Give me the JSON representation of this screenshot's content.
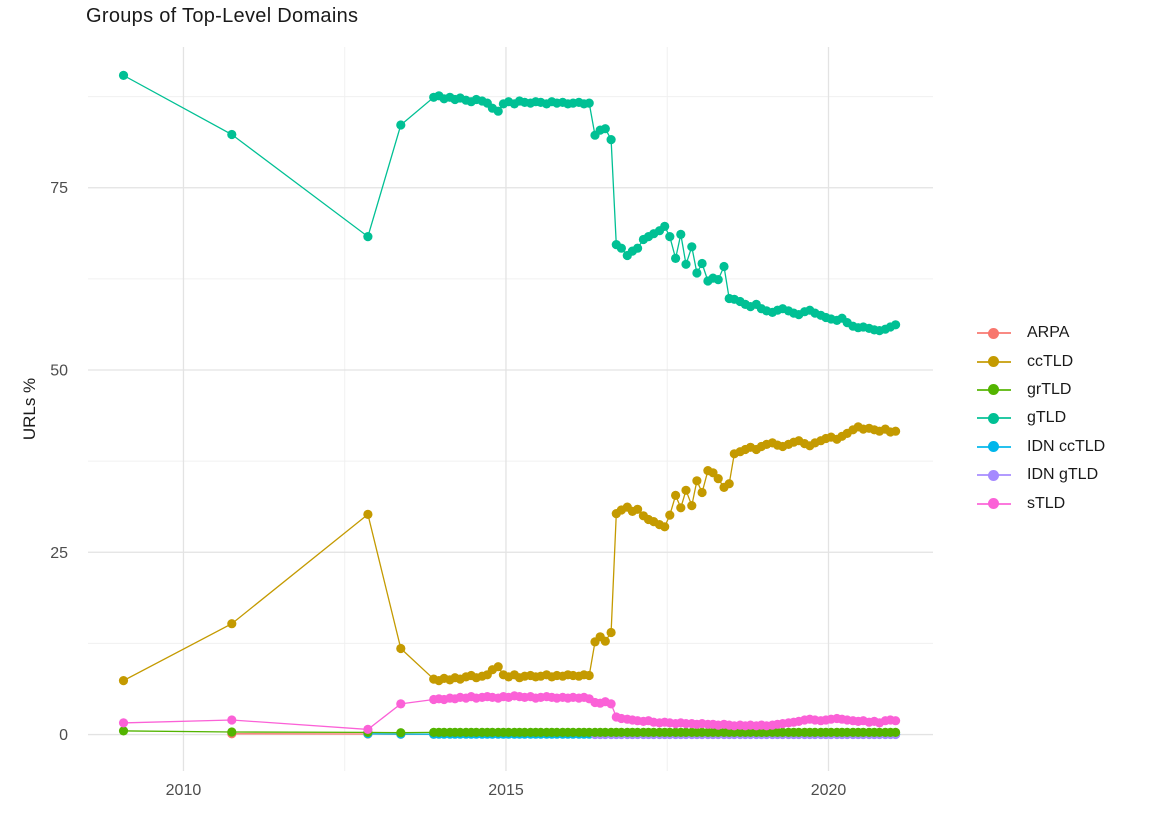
{
  "page": {
    "background": "#ffffff"
  },
  "chart_data": {
    "type": "line",
    "title": "Groups of Top-Level Domains",
    "xlabel": "",
    "ylabel": "URLs %",
    "x_ticks": [
      2010,
      2015,
      2020
    ],
    "y_ticks": [
      0,
      25,
      50,
      75
    ],
    "x_minor_gridlines": [
      2012.5,
      2017.5
    ],
    "y_minor_gridlines": [
      12.5,
      37.5,
      62.5,
      87.5
    ],
    "xlim": [
      2008.52,
      2021.62
    ],
    "ylim": [
      -5,
      94.3
    ],
    "grid": "major+minor",
    "legend_position": "right",
    "colors": {
      "grid_major": "#e3e3e3",
      "grid_minor": "#f0f0f0",
      "axis_text": "#4d4d4d",
      "text": "#1a1a1a"
    },
    "series": [
      {
        "name": "ARPA",
        "color": "#F8766D",
        "x": [
          2010.75,
          2012.86,
          2013.37,
          2013.88
        ],
        "y": [
          0.1,
          0.07,
          0.05,
          0.05
        ]
      },
      {
        "name": "ccTLD",
        "color": "#C49A00",
        "x": [
          2009.07,
          2010.75,
          2012.86,
          2013.37,
          2013.88,
          2013.96,
          2014.04,
          2014.13,
          2014.21,
          2014.29,
          2014.38,
          2014.46,
          2014.54,
          2014.63,
          2014.71,
          2014.79,
          2014.88,
          2014.96,
          2015.04,
          2015.13,
          2015.21,
          2015.29,
          2015.38,
          2015.46,
          2015.54,
          2015.63,
          2015.71,
          2015.79,
          2015.88,
          2015.96,
          2016.04,
          2016.13,
          2016.21,
          2016.29,
          2016.38,
          2016.46,
          2016.54,
          2016.63,
          2016.71,
          2016.79,
          2016.88,
          2016.96,
          2017.04,
          2017.13,
          2017.21,
          2017.29,
          2017.38,
          2017.46,
          2017.54,
          2017.63,
          2017.71,
          2017.79,
          2017.88,
          2017.96,
          2018.04,
          2018.13,
          2018.21,
          2018.29,
          2018.38,
          2018.46,
          2018.54,
          2018.63,
          2018.71,
          2018.79,
          2018.88,
          2018.96,
          2019.04,
          2019.13,
          2019.21,
          2019.29,
          2019.38,
          2019.46,
          2019.54,
          2019.63,
          2019.71,
          2019.79,
          2019.88,
          2019.96,
          2020.04,
          2020.13,
          2020.21,
          2020.29,
          2020.38,
          2020.46,
          2020.54,
          2020.63,
          2020.71,
          2020.79,
          2020.88,
          2020.96,
          2021.04
        ],
        "y": [
          7.4,
          15.2,
          30.2,
          11.8,
          7.6,
          7.4,
          7.7,
          7.5,
          7.8,
          7.6,
          7.9,
          8.1,
          7.8,
          8.0,
          8.2,
          8.9,
          9.3,
          8.2,
          7.9,
          8.2,
          7.8,
          8.0,
          8.1,
          7.9,
          8.0,
          8.2,
          7.9,
          8.1,
          8.0,
          8.2,
          8.1,
          8.0,
          8.2,
          8.1,
          12.7,
          13.4,
          12.8,
          14.0,
          30.3,
          30.8,
          31.2,
          30.6,
          30.9,
          30.0,
          29.5,
          29.2,
          28.8,
          28.5,
          30.1,
          32.8,
          31.1,
          33.5,
          31.4,
          34.8,
          33.2,
          36.2,
          35.9,
          35.1,
          33.9,
          34.4,
          38.5,
          38.8,
          39.1,
          39.4,
          39.1,
          39.5,
          39.8,
          40.0,
          39.7,
          39.5,
          39.8,
          40.1,
          40.3,
          39.9,
          39.6,
          40.0,
          40.3,
          40.6,
          40.8,
          40.5,
          40.9,
          41.3,
          41.8,
          42.2,
          41.9,
          42.0,
          41.8,
          41.6,
          41.9,
          41.5,
          41.6
        ]
      },
      {
        "name": "grTLD",
        "color": "#53B400",
        "x": [
          2009.07,
          2010.75,
          2012.86,
          2013.37,
          2013.88,
          2013.96,
          2014.04,
          2014.13,
          2014.21,
          2014.29,
          2014.38,
          2014.46,
          2014.54,
          2014.63,
          2014.71,
          2014.79,
          2014.88,
          2014.96,
          2015.04,
          2015.13,
          2015.21,
          2015.29,
          2015.38,
          2015.46,
          2015.54,
          2015.63,
          2015.71,
          2015.79,
          2015.88,
          2015.96,
          2016.04,
          2016.13,
          2016.21,
          2016.29,
          2016.38,
          2016.46,
          2016.54,
          2016.63,
          2016.71,
          2016.79,
          2016.88,
          2016.96,
          2017.04,
          2017.13,
          2017.21,
          2017.29,
          2017.38,
          2017.46,
          2017.54,
          2017.63,
          2017.71,
          2017.79,
          2017.88,
          2017.96,
          2018.04,
          2018.13,
          2018.21,
          2018.29,
          2018.38,
          2018.46,
          2018.54,
          2018.63,
          2018.71,
          2018.79,
          2018.88,
          2018.96,
          2019.04,
          2019.13,
          2019.21,
          2019.29,
          2019.38,
          2019.46,
          2019.54,
          2019.63,
          2019.71,
          2019.79,
          2019.88,
          2019.96,
          2020.04,
          2020.13,
          2020.21,
          2020.29,
          2020.38,
          2020.46,
          2020.54,
          2020.63,
          2020.71,
          2020.79,
          2020.88,
          2020.96,
          2021.04
        ],
        "y": [
          0.5,
          0.35,
          0.3,
          0.25,
          0.3,
          0.3,
          0.3,
          0.3,
          0.3,
          0.3,
          0.3,
          0.3,
          0.3,
          0.3,
          0.3,
          0.3,
          0.3,
          0.3,
          0.3,
          0.3,
          0.3,
          0.3,
          0.3,
          0.3,
          0.3,
          0.3,
          0.3,
          0.3,
          0.3,
          0.3,
          0.3,
          0.3,
          0.3,
          0.3,
          0.3,
          0.3,
          0.3,
          0.3,
          0.3,
          0.3,
          0.3,
          0.3,
          0.3,
          0.3,
          0.3,
          0.3,
          0.3,
          0.3,
          0.3,
          0.3,
          0.3,
          0.3,
          0.3,
          0.3,
          0.3,
          0.3,
          0.3,
          0.3,
          0.3,
          0.3,
          0.3,
          0.3,
          0.3,
          0.3,
          0.3,
          0.3,
          0.3,
          0.3,
          0.3,
          0.3,
          0.3,
          0.3,
          0.3,
          0.3,
          0.3,
          0.3,
          0.3,
          0.3,
          0.3,
          0.3,
          0.3,
          0.3,
          0.3,
          0.3,
          0.3,
          0.3,
          0.3,
          0.3,
          0.3,
          0.3,
          0.3
        ]
      },
      {
        "name": "gTLD",
        "color": "#00C094",
        "x": [
          2009.07,
          2010.75,
          2012.86,
          2013.37,
          2013.88,
          2013.96,
          2014.04,
          2014.13,
          2014.21,
          2014.29,
          2014.38,
          2014.46,
          2014.54,
          2014.63,
          2014.71,
          2014.79,
          2014.88,
          2014.96,
          2015.04,
          2015.13,
          2015.21,
          2015.29,
          2015.38,
          2015.46,
          2015.54,
          2015.63,
          2015.71,
          2015.79,
          2015.88,
          2015.96,
          2016.04,
          2016.13,
          2016.21,
          2016.29,
          2016.38,
          2016.46,
          2016.54,
          2016.63,
          2016.71,
          2016.79,
          2016.88,
          2016.96,
          2017.04,
          2017.13,
          2017.21,
          2017.29,
          2017.38,
          2017.46,
          2017.54,
          2017.63,
          2017.71,
          2017.79,
          2017.88,
          2017.96,
          2018.04,
          2018.13,
          2018.21,
          2018.29,
          2018.38,
          2018.46,
          2018.54,
          2018.63,
          2018.71,
          2018.79,
          2018.88,
          2018.96,
          2019.04,
          2019.13,
          2019.21,
          2019.29,
          2019.38,
          2019.46,
          2019.54,
          2019.63,
          2019.71,
          2019.79,
          2019.88,
          2019.96,
          2020.04,
          2020.13,
          2020.21,
          2020.29,
          2020.38,
          2020.46,
          2020.54,
          2020.63,
          2020.71,
          2020.79,
          2020.88,
          2020.96,
          2021.04
        ],
        "y": [
          90.4,
          82.3,
          68.3,
          83.6,
          87.4,
          87.6,
          87.2,
          87.4,
          87.1,
          87.3,
          87.0,
          86.8,
          87.1,
          86.9,
          86.6,
          85.9,
          85.5,
          86.5,
          86.8,
          86.5,
          86.9,
          86.7,
          86.6,
          86.8,
          86.7,
          86.5,
          86.8,
          86.6,
          86.7,
          86.5,
          86.6,
          86.7,
          86.5,
          86.6,
          82.2,
          82.9,
          83.1,
          81.6,
          67.2,
          66.7,
          65.7,
          66.3,
          66.7,
          67.9,
          68.3,
          68.7,
          69.1,
          69.7,
          68.3,
          65.3,
          68.6,
          64.5,
          66.9,
          63.3,
          64.6,
          62.2,
          62.6,
          62.4,
          64.2,
          59.8,
          59.7,
          59.4,
          59.0,
          58.7,
          59.0,
          58.4,
          58.1,
          57.9,
          58.2,
          58.4,
          58.1,
          57.8,
          57.6,
          58.0,
          58.2,
          57.8,
          57.5,
          57.2,
          57.0,
          56.8,
          57.1,
          56.5,
          56.0,
          55.8,
          55.9,
          55.7,
          55.5,
          55.4,
          55.6,
          55.9,
          56.2
        ]
      },
      {
        "name": "IDN ccTLD",
        "color": "#00B6EB",
        "x": [
          2012.86,
          2013.37,
          2013.88,
          2013.96,
          2014.04,
          2014.13,
          2014.21,
          2014.29,
          2014.38,
          2014.46,
          2014.54,
          2014.63,
          2014.71,
          2014.79,
          2014.88,
          2014.96,
          2015.04,
          2015.13,
          2015.21,
          2015.29,
          2015.38,
          2015.46,
          2015.54,
          2015.63,
          2015.71,
          2015.79,
          2015.88,
          2015.96,
          2016.04,
          2016.13,
          2016.21,
          2016.29,
          2016.38,
          2016.46,
          2016.54,
          2016.63,
          2016.71,
          2016.79,
          2016.88,
          2016.96,
          2017.04,
          2017.13,
          2017.21,
          2017.29,
          2017.38,
          2017.46,
          2017.54,
          2017.63,
          2017.71,
          2017.79,
          2017.88,
          2017.96,
          2018.04,
          2018.13,
          2018.21,
          2018.29,
          2018.38,
          2018.46,
          2018.54,
          2018.63,
          2018.71,
          2018.79,
          2018.88,
          2018.96,
          2019.04,
          2019.13,
          2019.21,
          2019.29,
          2019.38,
          2019.46,
          2019.54,
          2019.63,
          2019.71,
          2019.79,
          2019.88,
          2019.96,
          2020.04,
          2020.13,
          2020.21,
          2020.29,
          2020.38,
          2020.46,
          2020.54,
          2020.63,
          2020.71,
          2020.79,
          2020.88,
          2020.96,
          2021.04
        ],
        "y": [
          0.1,
          0.06,
          0.05,
          0.05,
          0.05,
          0.05,
          0.05,
          0.05,
          0.05,
          0.05,
          0.05,
          0.05,
          0.05,
          0.05,
          0.05,
          0.05,
          0.05,
          0.05,
          0.05,
          0.05,
          0.05,
          0.05,
          0.05,
          0.05,
          0.05,
          0.05,
          0.05,
          0.05,
          0.05,
          0.05,
          0.05,
          0.05,
          0.05,
          0.05,
          0.05,
          0.05,
          0.05,
          0.05,
          0.05,
          0.05,
          0.05,
          0.05,
          0.05,
          0.05,
          0.05,
          0.05,
          0.05,
          0.05,
          0.05,
          0.05,
          0.05,
          0.05,
          0.05,
          0.05,
          0.05,
          0.05,
          0.05,
          0.05,
          0.05,
          0.05,
          0.05,
          0.05,
          0.05,
          0.05,
          0.05,
          0.05,
          0.05,
          0.05,
          0.05,
          0.05,
          0.05,
          0.05,
          0.05,
          0.05,
          0.05,
          0.05,
          0.05,
          0.05,
          0.05,
          0.05,
          0.05,
          0.05,
          0.05,
          0.05,
          0.05,
          0.05,
          0.05,
          0.05,
          0.05
        ]
      },
      {
        "name": "IDN gTLD",
        "color": "#A58AFF",
        "x": [
          2016.38,
          2016.46,
          2016.54,
          2016.63,
          2016.71,
          2016.79,
          2016.88,
          2016.96,
          2017.04,
          2017.13,
          2017.21,
          2017.29,
          2017.38,
          2017.46,
          2017.54,
          2017.63,
          2017.71,
          2017.79,
          2017.88,
          2017.96,
          2018.04,
          2018.13,
          2018.21,
          2018.29,
          2018.38,
          2018.46,
          2018.54,
          2018.63,
          2018.71,
          2018.79,
          2018.88,
          2018.96,
          2019.04,
          2019.13,
          2019.21,
          2019.29,
          2019.38,
          2019.46,
          2019.54,
          2019.63,
          2019.71,
          2019.79,
          2019.88,
          2019.96,
          2020.04,
          2020.13,
          2020.21,
          2020.29,
          2020.38,
          2020.46,
          2020.54,
          2020.63,
          2020.71,
          2020.79,
          2020.88,
          2020.96,
          2021.04
        ],
        "y": [
          0,
          0,
          0,
          0,
          0,
          0,
          0,
          0,
          0,
          0,
          0,
          0,
          0,
          0,
          0,
          0,
          0,
          0,
          0,
          0,
          0,
          0,
          0,
          0,
          0,
          0,
          0,
          0,
          0,
          0,
          0,
          0,
          0,
          0,
          0,
          0,
          0,
          0,
          0,
          0,
          0,
          0,
          0,
          0,
          0,
          0,
          0,
          0,
          0,
          0,
          0,
          0,
          0,
          0,
          0,
          0,
          0
        ]
      },
      {
        "name": "sTLD",
        "color": "#FB61D7",
        "x": [
          2009.07,
          2010.75,
          2012.86,
          2013.37,
          2013.88,
          2013.96,
          2014.04,
          2014.13,
          2014.21,
          2014.29,
          2014.38,
          2014.46,
          2014.54,
          2014.63,
          2014.71,
          2014.79,
          2014.88,
          2014.96,
          2015.04,
          2015.13,
          2015.21,
          2015.29,
          2015.38,
          2015.46,
          2015.54,
          2015.63,
          2015.71,
          2015.79,
          2015.88,
          2015.96,
          2016.04,
          2016.13,
          2016.21,
          2016.29,
          2016.38,
          2016.46,
          2016.54,
          2016.63,
          2016.71,
          2016.79,
          2016.88,
          2016.96,
          2017.04,
          2017.13,
          2017.21,
          2017.29,
          2017.38,
          2017.46,
          2017.54,
          2017.63,
          2017.71,
          2017.79,
          2017.88,
          2017.96,
          2018.04,
          2018.13,
          2018.21,
          2018.29,
          2018.38,
          2018.46,
          2018.54,
          2018.63,
          2018.71,
          2018.79,
          2018.88,
          2018.96,
          2019.04,
          2019.13,
          2019.21,
          2019.29,
          2019.38,
          2019.46,
          2019.54,
          2019.63,
          2019.71,
          2019.79,
          2019.88,
          2019.96,
          2020.04,
          2020.13,
          2020.21,
          2020.29,
          2020.38,
          2020.46,
          2020.54,
          2020.63,
          2020.71,
          2020.79,
          2020.88,
          2020.96,
          2021.04
        ],
        "y": [
          1.6,
          2.0,
          0.7,
          4.2,
          4.8,
          4.9,
          4.8,
          5.0,
          4.9,
          5.1,
          5.0,
          5.2,
          5.0,
          5.1,
          5.2,
          5.1,
          5.0,
          5.2,
          5.1,
          5.3,
          5.2,
          5.1,
          5.2,
          5.0,
          5.1,
          5.2,
          5.1,
          5.0,
          5.1,
          5.0,
          5.1,
          5.0,
          5.1,
          4.9,
          4.4,
          4.3,
          4.5,
          4.2,
          2.4,
          2.2,
          2.1,
          2.0,
          1.9,
          1.8,
          1.9,
          1.7,
          1.6,
          1.7,
          1.6,
          1.5,
          1.6,
          1.5,
          1.5,
          1.4,
          1.5,
          1.4,
          1.4,
          1.3,
          1.4,
          1.3,
          1.2,
          1.3,
          1.2,
          1.3,
          1.2,
          1.3,
          1.2,
          1.3,
          1.4,
          1.5,
          1.6,
          1.7,
          1.8,
          2.0,
          2.1,
          2.0,
          1.9,
          2.0,
          2.1,
          2.2,
          2.1,
          2.0,
          1.9,
          1.8,
          1.9,
          1.7,
          1.8,
          1.6,
          1.9,
          2.0,
          1.9
        ]
      }
    ]
  }
}
